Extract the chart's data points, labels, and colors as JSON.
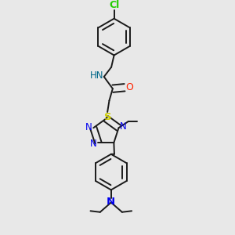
{
  "bg_color": "#e8e8e8",
  "bond_color": "#1a1a1a",
  "bond_width": 1.4,
  "dbo": 0.08,
  "cl_color": "#22cc00",
  "o_color": "#ff2200",
  "n_color": "#0000ee",
  "s_color": "#cccc00",
  "hn_color": "#006688",
  "fig_width": 3.0,
  "fig_height": 3.0,
  "dpi": 100,
  "xlim": [
    0,
    10
  ],
  "ylim": [
    0,
    10
  ]
}
